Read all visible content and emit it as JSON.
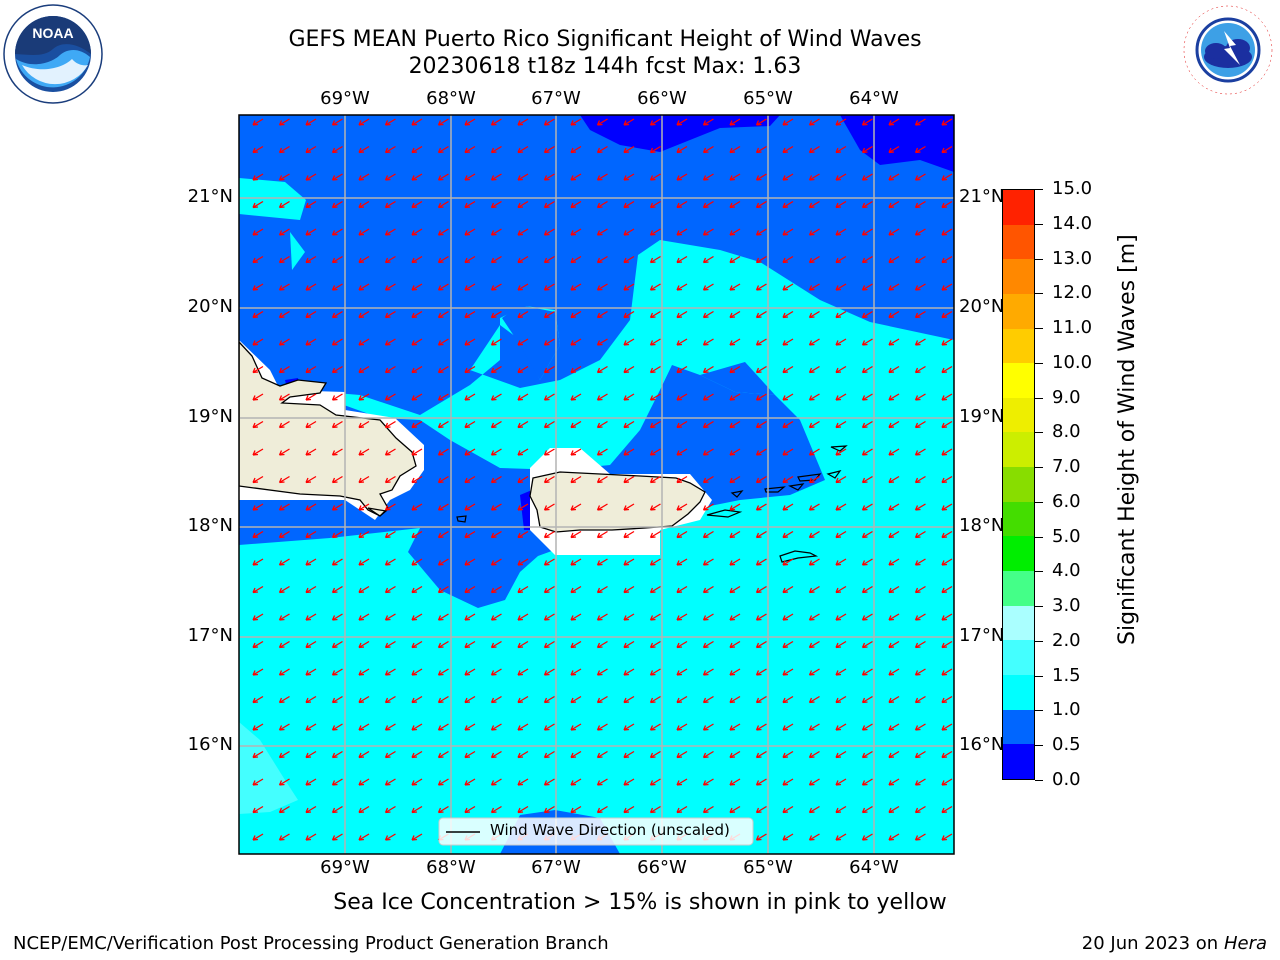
{
  "title_line1": "GEFS MEAN Puerto Rico Significant Height of Wind Waves",
  "title_line2": "20230618 t18z 144h fcst   Max: 1.63",
  "lon_labels": [
    "69°W",
    "68°W",
    "67°W",
    "66°W",
    "65°W",
    "64°W"
  ],
  "lat_labels": [
    "21°N",
    "20°N",
    "19°N",
    "18°N",
    "17°N",
    "16°N"
  ],
  "map_extent": {
    "lon_min": -70.0,
    "lon_max": -63.25,
    "lat_min": 15.0,
    "lat_max": 21.75
  },
  "legend_label": "Wind Wave Direction (unscaled)",
  "colorbar": {
    "title": "Significant Height of Wind Waves [m]",
    "ticks": [
      "0.0",
      "0.5",
      "1.0",
      "1.5",
      "2.0",
      "3.0",
      "4.0",
      "5.0",
      "6.0",
      "7.0",
      "8.0",
      "9.0",
      "10.0",
      "11.0",
      "12.0",
      "13.0",
      "14.0",
      "15.0"
    ],
    "colors": [
      "#0000ff",
      "#0066ff",
      "#00ffff",
      "#44ffff",
      "#aaffff",
      "#44ff88",
      "#00ee00",
      "#44dd00",
      "#88dd00",
      "#ccee00",
      "#eeee00",
      "#ffff00",
      "#ffcc00",
      "#ffaa00",
      "#ff8800",
      "#ff5500",
      "#ff2200"
    ]
  },
  "colors": {
    "land": "#efedd9",
    "arrow": "#ff0000",
    "grid": "#b4b4b4"
  },
  "footer_note": "Sea Ice Concentration > 15% is shown in pink to yellow",
  "credit_left": "NCEP/EMC/Verification Post Processing Product Generation Branch",
  "credit_right_date": "20 Jun 2023 on",
  "credit_right_host": "Hera",
  "logos": [
    "noaa-logo",
    "nws-logo"
  ]
}
